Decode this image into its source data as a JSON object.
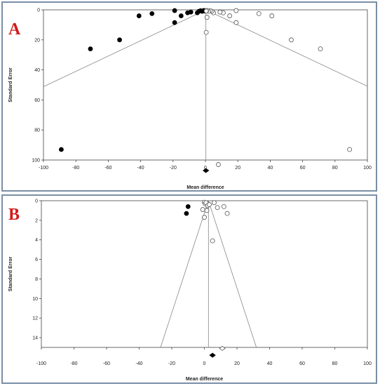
{
  "colors": {
    "panel_border": "#7a8fa6",
    "panel_label": "#d11a1a",
    "filled": "#000000",
    "open": "#ffffff",
    "line": "#888888"
  },
  "chart_data": [
    {
      "type": "scatter",
      "panel_label": "A",
      "xlabel": "Mean difference",
      "ylabel": "Standard Error",
      "xlim": [
        -100,
        100
      ],
      "ylim": [
        0,
        100
      ],
      "y_inverted": true,
      "xticks": [
        -100,
        -80,
        -60,
        -40,
        -20,
        0,
        20,
        40,
        60,
        80,
        100
      ],
      "yticks": [
        0,
        20,
        40,
        60,
        80,
        100
      ],
      "pooled_estimate": 0.3,
      "series": [
        {
          "marker": "filled-circle",
          "points": [
            [
              -89,
              93
            ],
            [
              -71,
              26
            ],
            [
              -53,
              20
            ],
            [
              -41,
              4
            ],
            [
              -33,
              2.5
            ],
            [
              -19,
              0.5
            ],
            [
              -19,
              8.5
            ],
            [
              -15,
              4
            ],
            [
              -11,
              2
            ],
            [
              -9,
              1.5
            ],
            [
              -5,
              2
            ],
            [
              -4,
              1
            ],
            [
              -3,
              0.6
            ],
            [
              -2,
              1
            ],
            [
              -1,
              0.4
            ],
            [
              -0.5,
              0.8
            ]
          ]
        },
        {
          "marker": "open-circle",
          "points": [
            [
              89,
              93
            ],
            [
              71,
              26
            ],
            [
              53,
              20
            ],
            [
              41,
              4
            ],
            [
              33,
              2.5
            ],
            [
              19,
              0.5
            ],
            [
              19,
              8.5
            ],
            [
              15,
              4
            ],
            [
              11,
              2
            ],
            [
              9,
              1.5
            ],
            [
              5,
              2
            ],
            [
              4,
              1
            ],
            [
              3,
              0.6
            ],
            [
              2,
              1
            ],
            [
              1,
              0.4
            ],
            [
              0.5,
              0.8
            ],
            [
              0.5,
              15
            ],
            [
              1,
              5
            ],
            [
              8,
              103
            ]
          ]
        },
        {
          "marker": "filled-diamond",
          "points": [
            [
              0.3,
              107
            ]
          ]
        }
      ]
    },
    {
      "type": "scatter",
      "panel_label": "B",
      "xlabel": "Mean difference",
      "ylabel": "Standard Error",
      "xlim": [
        -100,
        100
      ],
      "ylim": [
        0,
        15
      ],
      "y_inverted": true,
      "xticks": [
        -100,
        -80,
        -60,
        -40,
        -20,
        0,
        20,
        40,
        60,
        80,
        100
      ],
      "yticks": [
        0,
        2,
        4,
        6,
        8,
        10,
        12,
        14
      ],
      "pooled_estimate": 2.5,
      "series": [
        {
          "marker": "filled-circle",
          "points": [
            [
              -11,
              1.3
            ],
            [
              -10,
              0.6
            ]
          ]
        },
        {
          "marker": "open-circle",
          "points": [
            [
              0,
              0.15
            ],
            [
              0.5,
              0.3
            ],
            [
              1,
              0.2
            ],
            [
              2,
              0.5
            ],
            [
              1.5,
              1.0
            ],
            [
              3,
              0.4
            ],
            [
              -1,
              0.9
            ],
            [
              0,
              1.7
            ],
            [
              6,
              0.2
            ],
            [
              8,
              0.7
            ],
            [
              12,
              0.6
            ],
            [
              14,
              1.3
            ],
            [
              5,
              4.1
            ]
          ]
        },
        {
          "marker": "open-diamond",
          "points": [
            [
              11,
              15.1
            ]
          ]
        },
        {
          "marker": "filled-diamond",
          "points": [
            [
              5,
              15.8
            ]
          ]
        }
      ]
    }
  ]
}
